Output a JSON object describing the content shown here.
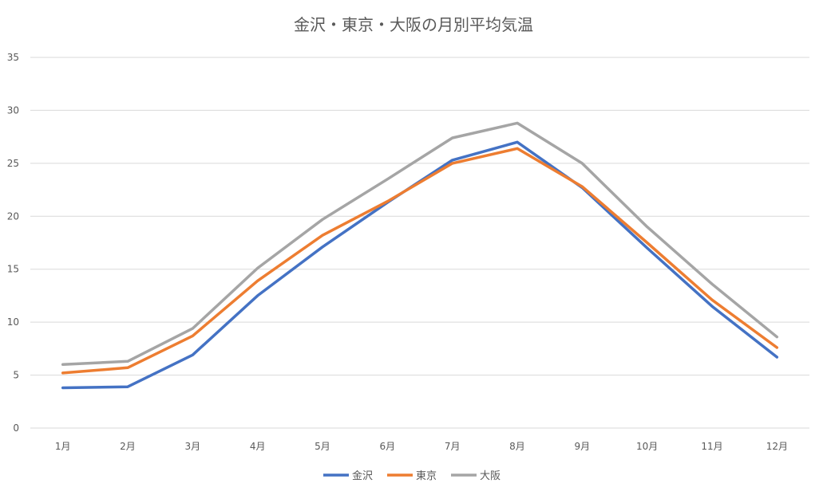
{
  "chart_data": {
    "type": "line",
    "title": "金沢・東京・大阪の月別平均気温",
    "xlabel": "",
    "ylabel": "",
    "categories": [
      "1月",
      "2月",
      "3月",
      "4月",
      "5月",
      "6月",
      "7月",
      "8月",
      "9月",
      "10月",
      "11月",
      "12月"
    ],
    "ylim": [
      0,
      35
    ],
    "yticks": [
      0,
      5,
      10,
      15,
      20,
      25,
      30,
      35
    ],
    "grid": true,
    "legend": "bottom",
    "series": [
      {
        "name": "金沢",
        "color": "#4472C4",
        "values": [
          3.8,
          3.9,
          6.9,
          12.5,
          17.1,
          21.3,
          25.3,
          27.0,
          22.7,
          17.0,
          11.5,
          6.7
        ]
      },
      {
        "name": "東京",
        "color": "#ED7D31",
        "values": [
          5.2,
          5.7,
          8.7,
          13.9,
          18.2,
          21.4,
          25.0,
          26.4,
          22.8,
          17.5,
          12.1,
          7.6
        ]
      },
      {
        "name": "大阪",
        "color": "#A5A5A5",
        "values": [
          6.0,
          6.3,
          9.4,
          15.1,
          19.7,
          23.5,
          27.4,
          28.8,
          25.0,
          19.0,
          13.6,
          8.6
        ]
      }
    ]
  }
}
